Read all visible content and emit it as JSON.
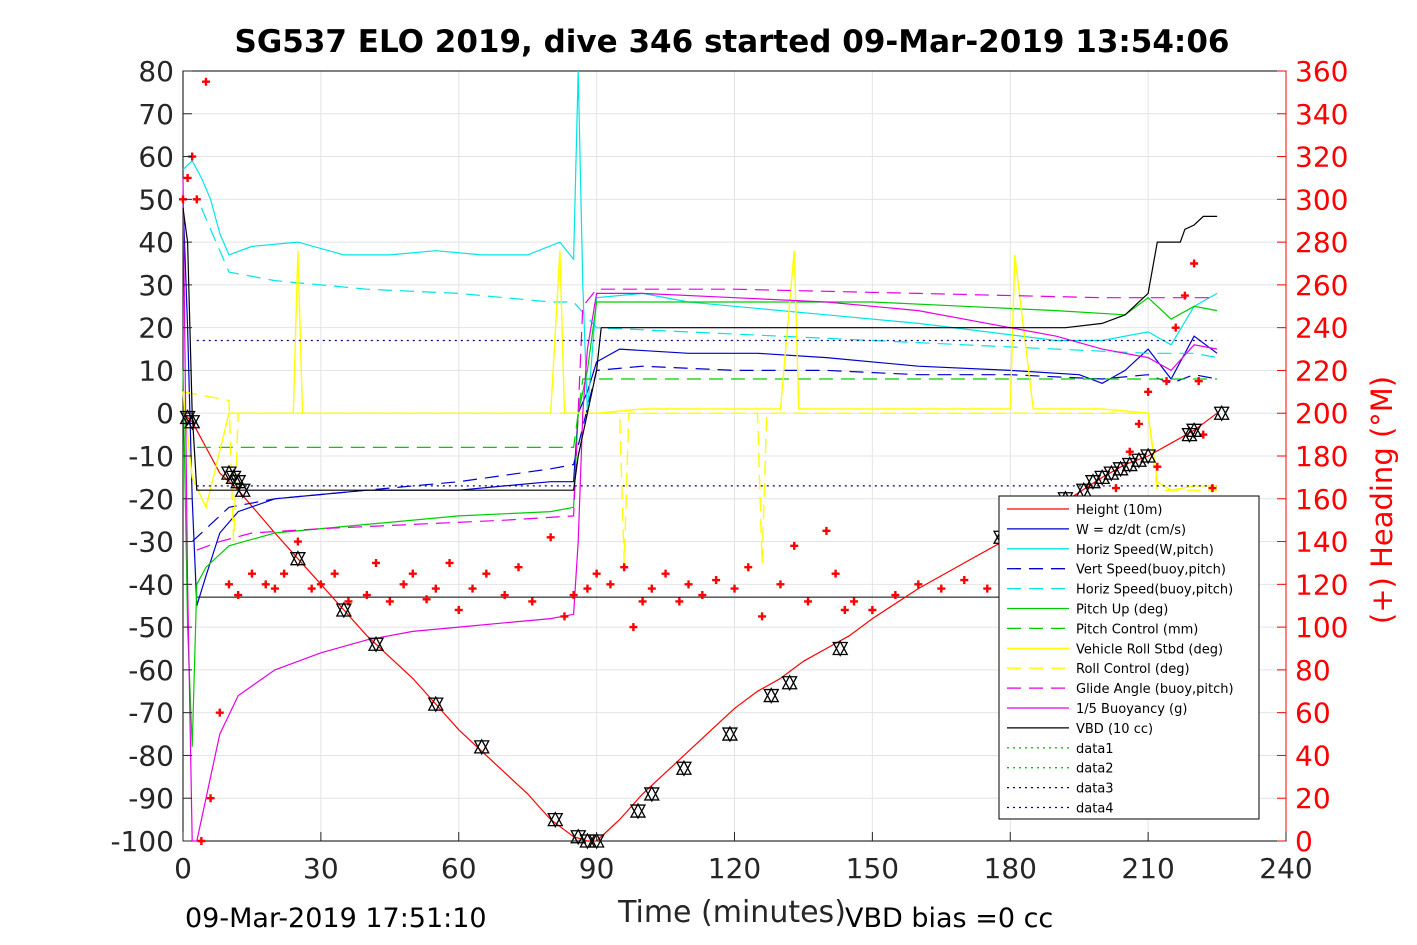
{
  "chart_data": {
    "type": "line",
    "title": "SG537 ELO 2019, dive 346 started 09-Mar-2019 13:54:06",
    "xlabel": "Time (minutes)",
    "ylabel": "",
    "ylabel_right": "(+) Heading (°M)",
    "xlim": [
      0,
      240
    ],
    "ylim": [
      -100,
      80
    ],
    "ylim_right": [
      0,
      360
    ],
    "x_ticks": [
      0,
      30,
      60,
      90,
      120,
      150,
      180,
      210,
      240
    ],
    "y_ticks": [
      80,
      70,
      60,
      50,
      40,
      30,
      20,
      10,
      0,
      -10,
      -20,
      -30,
      -40,
      -50,
      -60,
      -70,
      -80,
      -90,
      -100
    ],
    "y_ticks_right": [
      360,
      340,
      320,
      300,
      280,
      260,
      240,
      220,
      200,
      180,
      160,
      140,
      120,
      100,
      80,
      60,
      40,
      20,
      0
    ],
    "grid": true,
    "legend_position": "lower-right",
    "footer_left": "09-Mar-2019 17:51:10",
    "footer_right": "VBD bias =0 cc",
    "colors": {
      "red": "#ff0000",
      "blue": "#0000cc",
      "cyan": "#00e5e5",
      "green": "#00cc00",
      "yellow": "#ffff00",
      "magenta": "#e600e6",
      "black": "#000000",
      "navy": "#000080"
    },
    "series": [
      {
        "name": "Height (10m)",
        "color": "#ff0000",
        "style": "solid",
        "axis": "left",
        "x": [
          0,
          2,
          5,
          8,
          12,
          20,
          25,
          30,
          35,
          40,
          50,
          55,
          60,
          65,
          70,
          75,
          80,
          85,
          88,
          90,
          95,
          100,
          105,
          110,
          115,
          120,
          125,
          130,
          135,
          140,
          145,
          150,
          160,
          170,
          180,
          190,
          200,
          205,
          210,
          215,
          220,
          225
        ],
        "y": [
          0,
          -2,
          -8,
          -14,
          -18,
          -28,
          -34,
          -40,
          -46,
          -52,
          -62,
          -68,
          -74,
          -79,
          -84,
          -89,
          -95,
          -99,
          -100,
          -100,
          -95,
          -89,
          -84,
          -79,
          -74,
          -69,
          -65,
          -62,
          -58,
          -55,
          -52,
          -48,
          -41,
          -35,
          -29,
          -22,
          -15,
          -12,
          -10,
          -7,
          -4,
          0
        ]
      },
      {
        "name": "W = dz/dt (cm/s)",
        "color": "#0000cc",
        "style": "solid",
        "axis": "left",
        "x": [
          0,
          1,
          2,
          3,
          5,
          8,
          12,
          20,
          30,
          40,
          50,
          60,
          70,
          80,
          85,
          86,
          88,
          90,
          95,
          110,
          125,
          140,
          160,
          180,
          195,
          200,
          205,
          210,
          215,
          220,
          225
        ],
        "y": [
          50,
          20,
          -20,
          -45,
          -38,
          -28,
          -23,
          -20,
          -19,
          -18,
          -18,
          -18,
          -17,
          -16,
          -16,
          0,
          5,
          12,
          15,
          14,
          14,
          13,
          11,
          10,
          9,
          7,
          10,
          15,
          8,
          18,
          14
        ]
      },
      {
        "name": "Horiz Speed(W,pitch)",
        "color": "#00e5e5",
        "style": "solid",
        "axis": "left",
        "x": [
          0,
          2,
          4,
          6,
          8,
          10,
          15,
          25,
          35,
          45,
          55,
          65,
          75,
          82,
          85,
          86,
          87,
          88,
          90,
          100,
          110,
          120,
          140,
          160,
          175,
          190,
          200,
          210,
          215,
          220,
          225
        ],
        "y": [
          57,
          59,
          55,
          50,
          42,
          37,
          39,
          40,
          37,
          37,
          38,
          37,
          37,
          40,
          36,
          80,
          30,
          0,
          27,
          28,
          26,
          25,
          23,
          21,
          19,
          17,
          17,
          19,
          16,
          25,
          28
        ]
      },
      {
        "name": "Vert Speed(buoy,pitch)",
        "color": "#0000cc",
        "style": "dashed",
        "axis": "left",
        "x": [
          2,
          10,
          20,
          40,
          60,
          80,
          85,
          90,
          100,
          120,
          140,
          160,
          180,
          200,
          210,
          215,
          220,
          225
        ],
        "y": [
          -30,
          -22,
          -20,
          -18,
          -16,
          -13,
          -12,
          10,
          11,
          10,
          10,
          9,
          9,
          8,
          9,
          7,
          9,
          8
        ]
      },
      {
        "name": "Horiz Speed(buoy,pitch)",
        "color": "#00e5e5",
        "style": "dashed",
        "axis": "left",
        "x": [
          4,
          10,
          20,
          40,
          60,
          80,
          85,
          90,
          110,
          130,
          150,
          170,
          190,
          210,
          220,
          225
        ],
        "y": [
          48,
          33,
          31,
          29,
          28,
          26,
          26,
          20,
          19,
          18,
          17,
          16,
          15,
          14,
          14,
          13
        ]
      },
      {
        "name": "Pitch Up (deg)",
        "color": "#00cc00",
        "style": "solid",
        "axis": "left",
        "x": [
          0,
          1,
          2,
          3,
          5,
          10,
          20,
          40,
          60,
          80,
          85,
          86,
          88,
          90,
          110,
          130,
          150,
          170,
          190,
          205,
          210,
          215,
          220,
          225
        ],
        "y": [
          10,
          -50,
          -78,
          -40,
          -36,
          -31,
          -28,
          -26,
          -24,
          -23,
          -22,
          0,
          10,
          26,
          26,
          26,
          26,
          25,
          24,
          23,
          27,
          22,
          25,
          24
        ]
      },
      {
        "name": "Pitch Control (mm)",
        "color": "#00cc00",
        "style": "dashed",
        "axis": "left",
        "x": [
          3,
          85,
          87,
          210,
          212,
          225
        ],
        "y": [
          -8,
          -8,
          8,
          8,
          8,
          8
        ]
      },
      {
        "name": "Vehicle Roll Stbd (deg)",
        "color": "#ffff00",
        "style": "solid",
        "axis": "left",
        "x": [
          0,
          2,
          5,
          10,
          20,
          24,
          25,
          26,
          40,
          60,
          80,
          82,
          83,
          84,
          85,
          86,
          90,
          100,
          130,
          133,
          134,
          135,
          160,
          178,
          180,
          181,
          185,
          190,
          200,
          210,
          212,
          215,
          220,
          225
        ],
        "y": [
          5,
          -15,
          -22,
          0,
          0,
          0,
          38,
          0,
          0,
          0,
          0,
          38,
          0,
          0,
          0,
          0,
          0,
          1,
          1,
          38,
          1,
          1,
          1,
          1,
          1,
          37,
          1,
          1,
          1,
          0,
          -16,
          -18,
          -17,
          -17
        ]
      },
      {
        "name": "Roll Control (deg)",
        "color": "#ffff00",
        "style": "dashed",
        "axis": "left",
        "x": [
          0,
          10,
          11,
          12,
          84,
          85,
          86,
          90,
          95,
          96,
          97,
          100,
          120,
          125,
          126,
          127,
          210,
          212,
          225
        ],
        "y": [
          5,
          3,
          -30,
          0,
          0,
          0,
          0,
          0,
          0,
          -35,
          0,
          0,
          0,
          0,
          -35,
          0,
          0,
          -18,
          -18
        ]
      },
      {
        "name": "Glide Angle (buoy,pitch)",
        "color": "#e600e6",
        "style": "dashed",
        "axis": "left",
        "x": [
          3,
          8,
          15,
          30,
          50,
          70,
          85,
          87,
          90,
          120,
          160,
          200,
          210,
          220,
          225
        ],
        "y": [
          -32,
          -30,
          -28,
          -27,
          -26,
          -25,
          -24,
          25,
          29,
          29,
          28,
          27,
          27,
          27,
          27
        ]
      },
      {
        "name": "1/5 Buoyancy (g)",
        "color": "#e600e6",
        "style": "solid",
        "axis": "left",
        "x": [
          0,
          1,
          2,
          3,
          5,
          8,
          12,
          20,
          30,
          40,
          50,
          60,
          70,
          80,
          85,
          86,
          87,
          88,
          90,
          100,
          120,
          140,
          160,
          180,
          190,
          200,
          210,
          215,
          220,
          225
        ],
        "y": [
          55,
          -40,
          -100,
          -100,
          -90,
          -75,
          -66,
          -60,
          -56,
          -53,
          -51,
          -50,
          -49,
          -48,
          -47,
          -30,
          0,
          15,
          28,
          28,
          27,
          26,
          24,
          20,
          18,
          15,
          13,
          10,
          16,
          15
        ]
      },
      {
        "name": "VBD (10 cc)",
        "color": "#000000",
        "style": "solid",
        "axis": "left",
        "x": [
          0,
          1,
          2,
          3,
          4,
          85,
          86,
          88,
          90,
          91,
          192,
          200,
          205,
          206,
          210,
          212,
          217,
          218,
          220,
          222,
          225
        ],
        "y": [
          48,
          40,
          0,
          -18,
          -18,
          -18,
          -10,
          0,
          10,
          20,
          20,
          21,
          23,
          24,
          28,
          40,
          40,
          43,
          44,
          46,
          46
        ]
      },
      {
        "name": "data1",
        "color": "#00cc00",
        "style": "dotted",
        "axis": "left",
        "x": [],
        "y": []
      },
      {
        "name": "data2",
        "color": "#00cc00",
        "style": "dotted",
        "axis": "left",
        "x": [],
        "y": []
      },
      {
        "name": "data3",
        "color": "#000080",
        "style": "dotted",
        "axis": "left",
        "x": [
          3,
          225
        ],
        "y": [
          17,
          17
        ]
      },
      {
        "name": "data4",
        "color": "#000080",
        "style": "dotted",
        "axis": "left",
        "x": [
          3,
          225
        ],
        "y": [
          -17,
          -17
        ]
      }
    ],
    "reference_lines": [
      {
        "color": "#000000",
        "y": -43,
        "x": [
          3,
          225
        ]
      }
    ],
    "heading_markers": {
      "name": "(+) Heading (°M)",
      "color": "#ff0000",
      "axis": "right",
      "x": [
        0,
        1,
        2,
        3,
        4,
        5,
        6,
        8,
        10,
        12,
        15,
        18,
        20,
        22,
        25,
        28,
        30,
        33,
        36,
        40,
        42,
        45,
        48,
        50,
        53,
        55,
        58,
        60,
        63,
        66,
        70,
        73,
        76,
        80,
        83,
        85,
        88,
        90,
        93,
        96,
        98,
        100,
        102,
        105,
        108,
        110,
        113,
        116,
        120,
        123,
        126,
        130,
        133,
        136,
        140,
        142,
        144,
        146,
        150,
        155,
        160,
        165,
        170,
        175,
        180,
        185,
        190,
        195,
        200,
        203,
        206,
        208,
        210,
        212,
        214,
        216,
        218,
        220,
        221,
        222,
        224
      ],
      "y": [
        300,
        310,
        320,
        300,
        0,
        355,
        20,
        60,
        120,
        115,
        125,
        120,
        118,
        125,
        140,
        118,
        120,
        125,
        112,
        115,
        130,
        112,
        120,
        125,
        113,
        118,
        130,
        108,
        118,
        125,
        115,
        128,
        112,
        142,
        105,
        115,
        118,
        125,
        120,
        128,
        100,
        112,
        118,
        125,
        112,
        120,
        115,
        122,
        118,
        128,
        105,
        120,
        138,
        112,
        145,
        125,
        108,
        112,
        108,
        115,
        120,
        118,
        122,
        118,
        112,
        108,
        112,
        118,
        150,
        165,
        182,
        195,
        210,
        175,
        215,
        240,
        255,
        270,
        215,
        190,
        165
      ]
    },
    "triangle_markers": {
      "name": "",
      "x": [
        1,
        2,
        10,
        11,
        12,
        13,
        25,
        35,
        42,
        55,
        65,
        81,
        86,
        88,
        90,
        99,
        102,
        109,
        119,
        128,
        132,
        143
      ],
      "y": [
        -1,
        -2,
        -14,
        -15,
        -16,
        -18,
        -34,
        -46,
        -54,
        -68,
        -78,
        -95,
        -99,
        -100,
        -100,
        -93,
        -89,
        -83,
        -75,
        -66,
        -63,
        -55
      ]
    },
    "triangle_markers_ascent": {
      "name": "",
      "x": [
        178,
        192,
        196,
        198,
        200,
        202,
        204,
        206,
        208,
        210,
        219,
        220,
        226
      ],
      "y": [
        -29,
        -20,
        -18,
        -16,
        -15,
        -14,
        -13,
        -12,
        -11,
        -10,
        -5,
        -4,
        0
      ]
    }
  }
}
